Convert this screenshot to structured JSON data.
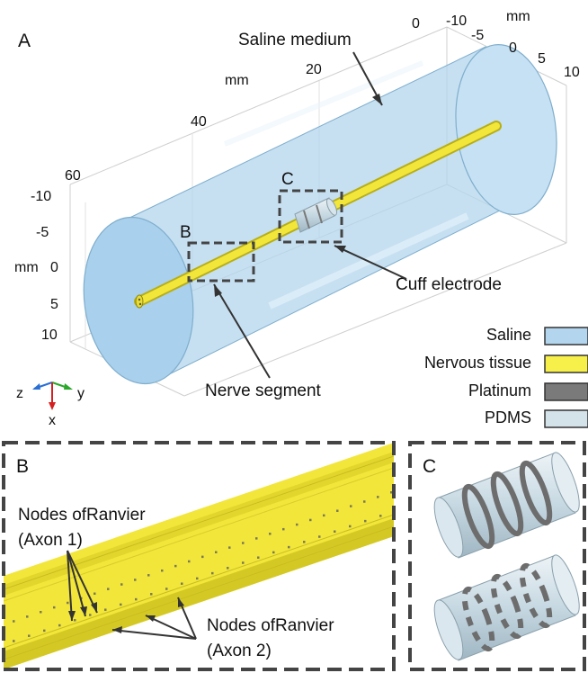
{
  "panel_a": {
    "label": "A",
    "callouts": {
      "saline_medium": "Saline medium",
      "cuff_electrode": "Cuff electrode",
      "nerve_segment": "Nerve segment",
      "box_b": "B",
      "box_c": "C"
    },
    "axes": {
      "z_ticks": [
        "0",
        "20",
        "40",
        "60"
      ],
      "z_unit": "mm",
      "y_ticks": [
        "-10",
        "-5",
        "0",
        "5",
        "10"
      ],
      "y_unit": "mm",
      "x_ticks": [
        "-10",
        "-5",
        "0",
        "5",
        "10"
      ],
      "x_unit": "mm"
    },
    "triad": {
      "z": "z",
      "y": "y",
      "x": "x"
    },
    "legend": [
      {
        "label": "Saline",
        "color": "#b3d6ee"
      },
      {
        "label": "Nervous tissue",
        "color": "#f7ef4a"
      },
      {
        "label": "Platinum",
        "color": "#7a7a7a"
      },
      {
        "label": "PDMS",
        "color": "#d4e2ea"
      }
    ]
  },
  "panel_b": {
    "label": "B",
    "nodes_axon1_line1": "Nodes ofRanvier",
    "nodes_axon1_line2": "(Axon 1)",
    "nodes_axon2_line1": "Nodes ofRanvier",
    "nodes_axon2_line2": "(Axon 2)"
  },
  "panel_c": {
    "label": "C"
  },
  "colors": {
    "saline": "#b3d6ee",
    "nerve": "#f2e63a",
    "frame": "#444444"
  }
}
